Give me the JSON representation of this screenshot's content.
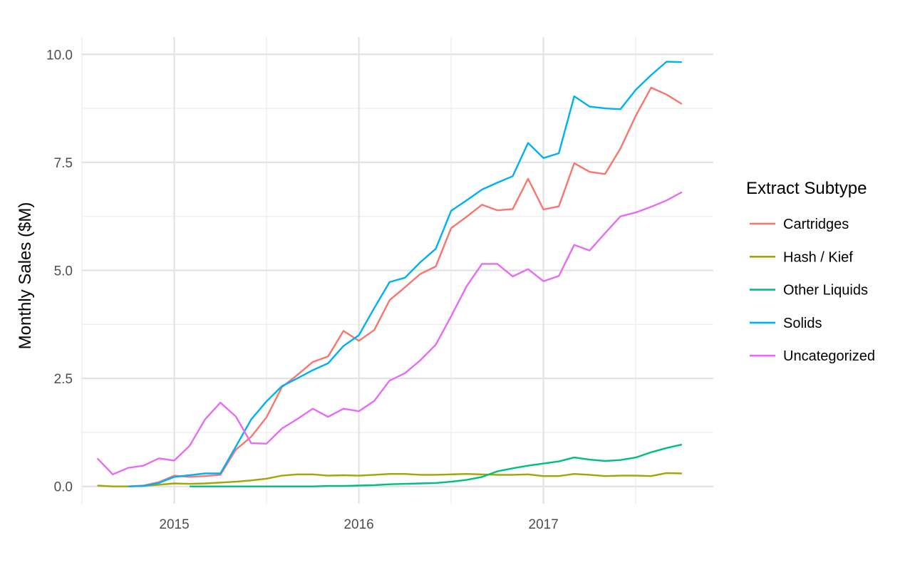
{
  "chart_data": {
    "type": "line",
    "title": "",
    "xlabel": "",
    "ylabel": "Monthly Sales ($M)",
    "ylim": [
      -0.4,
      10.4
    ],
    "yticks": [
      0.0,
      2.5,
      5.0,
      7.5,
      10.0
    ],
    "ytick_labels": [
      "0.0",
      "2.5",
      "5.0",
      "7.5",
      "10.0"
    ],
    "xticks": [
      2015,
      2016,
      2017
    ],
    "xtick_labels": [
      "2015",
      "2016",
      "2017"
    ],
    "xlim": [
      2014.5,
      2017.92
    ],
    "x_start": 2014.5833,
    "x_step": 0.08333,
    "grid": true,
    "legend": {
      "title": "Extract Subtype",
      "position": "right"
    },
    "series": [
      {
        "name": "Cartridges",
        "color": "#F8766D",
        "values": [
          null,
          null,
          0.0,
          0.02,
          0.1,
          0.25,
          0.22,
          0.24,
          0.27,
          0.85,
          1.15,
          1.6,
          2.3,
          2.58,
          2.88,
          3.01,
          3.6,
          3.37,
          3.62,
          4.31,
          4.61,
          4.92,
          5.09,
          5.98,
          6.24,
          6.52,
          6.39,
          6.42,
          7.12,
          6.41,
          6.48,
          7.48,
          7.28,
          7.23,
          7.82,
          8.58,
          9.23,
          9.07,
          8.85
        ]
      },
      {
        "name": "Hash / Kief",
        "color": "#A3A500",
        "values": [
          0.02,
          0.0,
          0.0,
          0.01,
          0.04,
          0.07,
          0.06,
          0.07,
          0.09,
          0.11,
          0.14,
          0.18,
          0.25,
          0.28,
          0.28,
          0.25,
          0.26,
          0.25,
          0.27,
          0.29,
          0.29,
          0.27,
          0.27,
          0.28,
          0.29,
          0.28,
          0.27,
          0.27,
          0.28,
          0.24,
          0.24,
          0.29,
          0.27,
          0.24,
          0.25,
          0.25,
          0.24,
          0.31,
          0.3
        ]
      },
      {
        "name": "Other Liquids",
        "color": "#00BF7D",
        "values": [
          null,
          null,
          null,
          null,
          null,
          null,
          0.0,
          0.0,
          0.0,
          0.0,
          0.0,
          0.0,
          0.0,
          0.0,
          0.0,
          0.01,
          0.01,
          0.02,
          0.03,
          0.05,
          0.06,
          0.07,
          0.08,
          0.11,
          0.15,
          0.22,
          0.35,
          0.42,
          0.48,
          0.53,
          0.58,
          0.67,
          0.62,
          0.59,
          0.61,
          0.67,
          0.79,
          0.89,
          0.97
        ]
      },
      {
        "name": "Solids",
        "color": "#00B0F6",
        "values": [
          null,
          null,
          0.0,
          0.01,
          0.08,
          0.22,
          0.26,
          0.3,
          0.3,
          0.92,
          1.55,
          1.97,
          2.32,
          2.5,
          2.69,
          2.85,
          3.25,
          3.5,
          4.13,
          4.73,
          4.83,
          5.19,
          5.5,
          6.38,
          6.62,
          6.87,
          7.03,
          7.18,
          7.95,
          7.6,
          7.71,
          9.03,
          8.79,
          8.75,
          8.73,
          9.18,
          9.52,
          9.83,
          9.82
        ]
      },
      {
        "name": "Uncategorized",
        "color": "#E76BF3",
        "values": [
          0.65,
          0.28,
          0.43,
          0.48,
          0.65,
          0.6,
          0.94,
          1.55,
          1.94,
          1.62,
          1.0,
          0.99,
          1.34,
          1.56,
          1.8,
          1.61,
          1.8,
          1.74,
          1.98,
          2.45,
          2.62,
          2.92,
          3.28,
          3.94,
          4.63,
          5.15,
          5.15,
          4.86,
          5.03,
          4.75,
          4.87,
          5.59,
          5.46,
          5.86,
          6.25,
          6.34,
          6.47,
          6.62,
          6.81
        ]
      }
    ]
  }
}
